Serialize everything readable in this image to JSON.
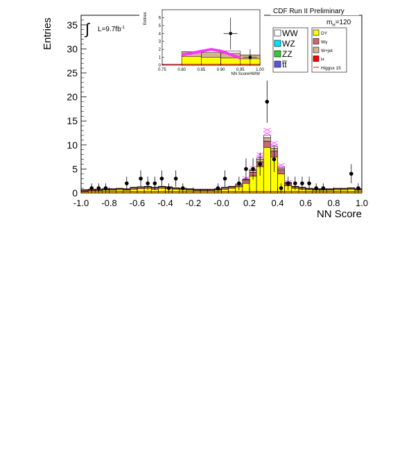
{
  "chart_data": [
    {
      "type": "bar",
      "header": "CDF Run II Preliminary",
      "luminosity_label": "L=9.7fb",
      "luminosity_exp": "-1",
      "mass_label_m": "m",
      "mass_label_sub": "H",
      "mass_label_value": "=120",
      "xlabel": "NN Score",
      "ylabel": "Entries",
      "xlim": [
        -1.0,
        1.0
      ],
      "ylim": [
        0,
        37
      ],
      "x_ticks": [
        "-1.0",
        "-0.8",
        "-0.6",
        "-0.4",
        "-0.2",
        "-0.0",
        "0.2",
        "0.4",
        "0.6",
        "0.8",
        "1.0"
      ],
      "y_ticks": [
        "0",
        "5",
        "10",
        "15",
        "20",
        "25",
        "30",
        "35"
      ],
      "bin_width": 0.05,
      "bin_lo": [
        -1.0,
        -0.95,
        -0.9,
        -0.85,
        -0.8,
        -0.75,
        -0.7,
        -0.65,
        -0.6,
        -0.55,
        -0.5,
        -0.45,
        -0.4,
        -0.35,
        -0.3,
        -0.25,
        -0.2,
        -0.15,
        -0.1,
        -0.05,
        0.0,
        0.05,
        0.1,
        0.15,
        0.2,
        0.25,
        0.3,
        0.35,
        0.4,
        0.45,
        0.5,
        0.55,
        0.6,
        0.65,
        0.7,
        0.75,
        0.8,
        0.85,
        0.9,
        0.95
      ],
      "stacks": [
        {
          "name": "DY",
          "color": "#ffff00",
          "values": [
            0.4,
            0.5,
            0.5,
            0.6,
            0.6,
            0.7,
            0.6,
            0.8,
            0.9,
            1.0,
            0.8,
            1.0,
            0.9,
            0.8,
            0.7,
            0.6,
            0.5,
            0.5,
            0.5,
            0.6,
            0.8,
            1.0,
            1.3,
            2.0,
            3.5,
            5.5,
            9.5,
            7.5,
            4.0,
            1.5,
            1.0,
            0.8,
            0.7,
            0.6,
            0.6,
            0.6,
            0.7,
            0.7,
            0.8,
            0.6
          ]
        },
        {
          "name": "Wγ",
          "color": "#cc6677",
          "values": [
            0.2,
            0.2,
            0.2,
            0.2,
            0.2,
            0.2,
            0.2,
            0.3,
            0.3,
            0.3,
            0.3,
            0.3,
            0.3,
            0.2,
            0.2,
            0.2,
            0.2,
            0.2,
            0.2,
            0.2,
            0.3,
            0.3,
            0.4,
            0.6,
            0.8,
            1.0,
            1.3,
            1.2,
            0.8,
            0.4,
            0.3,
            0.3,
            0.2,
            0.2,
            0.2,
            0.2,
            0.2,
            0.2,
            0.2,
            0.2
          ]
        },
        {
          "name": "W+jet",
          "color": "#d2b48c",
          "values": [
            0.1,
            0.1,
            0.1,
            0.1,
            0.1,
            0.1,
            0.1,
            0.1,
            0.1,
            0.1,
            0.1,
            0.1,
            0.1,
            0.1,
            0.1,
            0.1,
            0.1,
            0.1,
            0.1,
            0.1,
            0.1,
            0.1,
            0.2,
            0.2,
            0.4,
            0.5,
            0.7,
            0.6,
            0.4,
            0.2,
            0.1,
            0.1,
            0.1,
            0.1,
            0.1,
            0.1,
            0.1,
            0.1,
            0.1,
            0.1
          ]
        },
        {
          "name": "WW",
          "color": "#ffffff",
          "values": [
            0,
            0,
            0,
            0,
            0,
            0,
            0,
            0,
            0,
            0,
            0,
            0,
            0,
            0,
            0,
            0,
            0,
            0,
            0,
            0,
            0,
            0,
            0,
            0.1,
            0.2,
            0.3,
            0.5,
            0.4,
            0.2,
            0.1,
            0,
            0,
            0,
            0,
            0,
            0,
            0,
            0,
            0,
            0
          ]
        }
      ],
      "higgs_envelope": [
        0.8,
        0.9,
        0.9,
        1.0,
        1.0,
        1.1,
        1.0,
        1.3,
        1.4,
        1.5,
        1.3,
        1.5,
        1.4,
        1.2,
        1.1,
        1.0,
        0.9,
        0.9,
        0.9,
        1.0,
        1.3,
        1.6,
        2.2,
        3.4,
        5.6,
        8.4,
        13.5,
        10.8,
        6.2,
        2.6,
        1.7,
        1.4,
        1.2,
        1.1,
        1.1,
        1.1,
        1.2,
        1.2,
        1.3,
        1.1
      ],
      "data_points": {
        "x": [
          -0.925,
          -0.875,
          -0.825,
          -0.675,
          -0.575,
          -0.525,
          -0.475,
          -0.425,
          -0.375,
          -0.325,
          -0.275,
          -0.025,
          0.025,
          0.125,
          0.175,
          0.225,
          0.275,
          0.325,
          0.375,
          0.425,
          0.475,
          0.525,
          0.575,
          0.625,
          0.675,
          0.725,
          0.925,
          0.975
        ],
        "y": [
          1,
          1,
          1,
          2,
          3,
          2,
          2,
          3,
          1,
          3,
          1,
          1,
          3,
          2,
          5,
          5,
          6,
          19,
          7,
          1,
          2,
          2,
          2,
          2,
          1,
          1,
          4,
          1
        ],
        "err": [
          1,
          1,
          1,
          1.4,
          1.7,
          1.4,
          1.4,
          1.7,
          1,
          1.7,
          1,
          1,
          1.7,
          1.4,
          2.2,
          2.2,
          2.4,
          4.4,
          2.6,
          1,
          1.4,
          1.4,
          1.4,
          1.4,
          1,
          1,
          2,
          1
        ]
      },
      "legend": {
        "placement": "top-right",
        "left_entries": [
          {
            "label": "WW",
            "color": "#ffffff"
          },
          {
            "label": "WZ",
            "color": "#00e5ff"
          },
          {
            "label": "ZZ",
            "color": "#33cc33"
          },
          {
            "label": "tt",
            "color": "#5555dd"
          }
        ],
        "right_entries": [
          {
            "label": "DY",
            "color": "#ffff00"
          },
          {
            "label": "Wγ",
            "color": "#cc6677"
          },
          {
            "label": "W+jet",
            "color": "#d2b48c"
          },
          {
            "label": "H",
            "color": "#ff0000"
          },
          {
            "label": "Higgsx 15",
            "color": "#ff0000"
          }
        ]
      }
    },
    {
      "type": "bar",
      "xlabel": "NN ScoreHWW",
      "ylabel": "Entries",
      "xlim": [
        0.75,
        1.0
      ],
      "ylim": [
        0,
        7
      ],
      "x_ticks": [
        "0.75",
        "0.80",
        "0.85",
        "0.90",
        "0.95",
        "1.00"
      ],
      "y_ticks": [
        "0",
        "1",
        "2",
        "3",
        "4",
        "5",
        "6"
      ],
      "bin_lo": [
        0.75,
        0.8,
        0.85,
        0.9,
        0.95
      ],
      "stack_total": [
        0.0,
        1.7,
        1.6,
        1.5,
        1.3
      ],
      "yellow": [
        0.0,
        1.1,
        1.0,
        0.9,
        0.8
      ],
      "tan_top": [
        0.0,
        1.7,
        1.6,
        1.5,
        1.3
      ],
      "ww_top": [
        0.0,
        1.7,
        1.9,
        1.8,
        1.3
      ],
      "higgs_line": {
        "x": [
          0.8,
          0.875,
          0.9,
          0.95
        ],
        "y": [
          1.3,
          2.0,
          1.8,
          0.9
        ]
      },
      "data_points": {
        "x": [
          0.925,
          0.975
        ],
        "y": [
          4,
          1
        ]
      }
    }
  ]
}
